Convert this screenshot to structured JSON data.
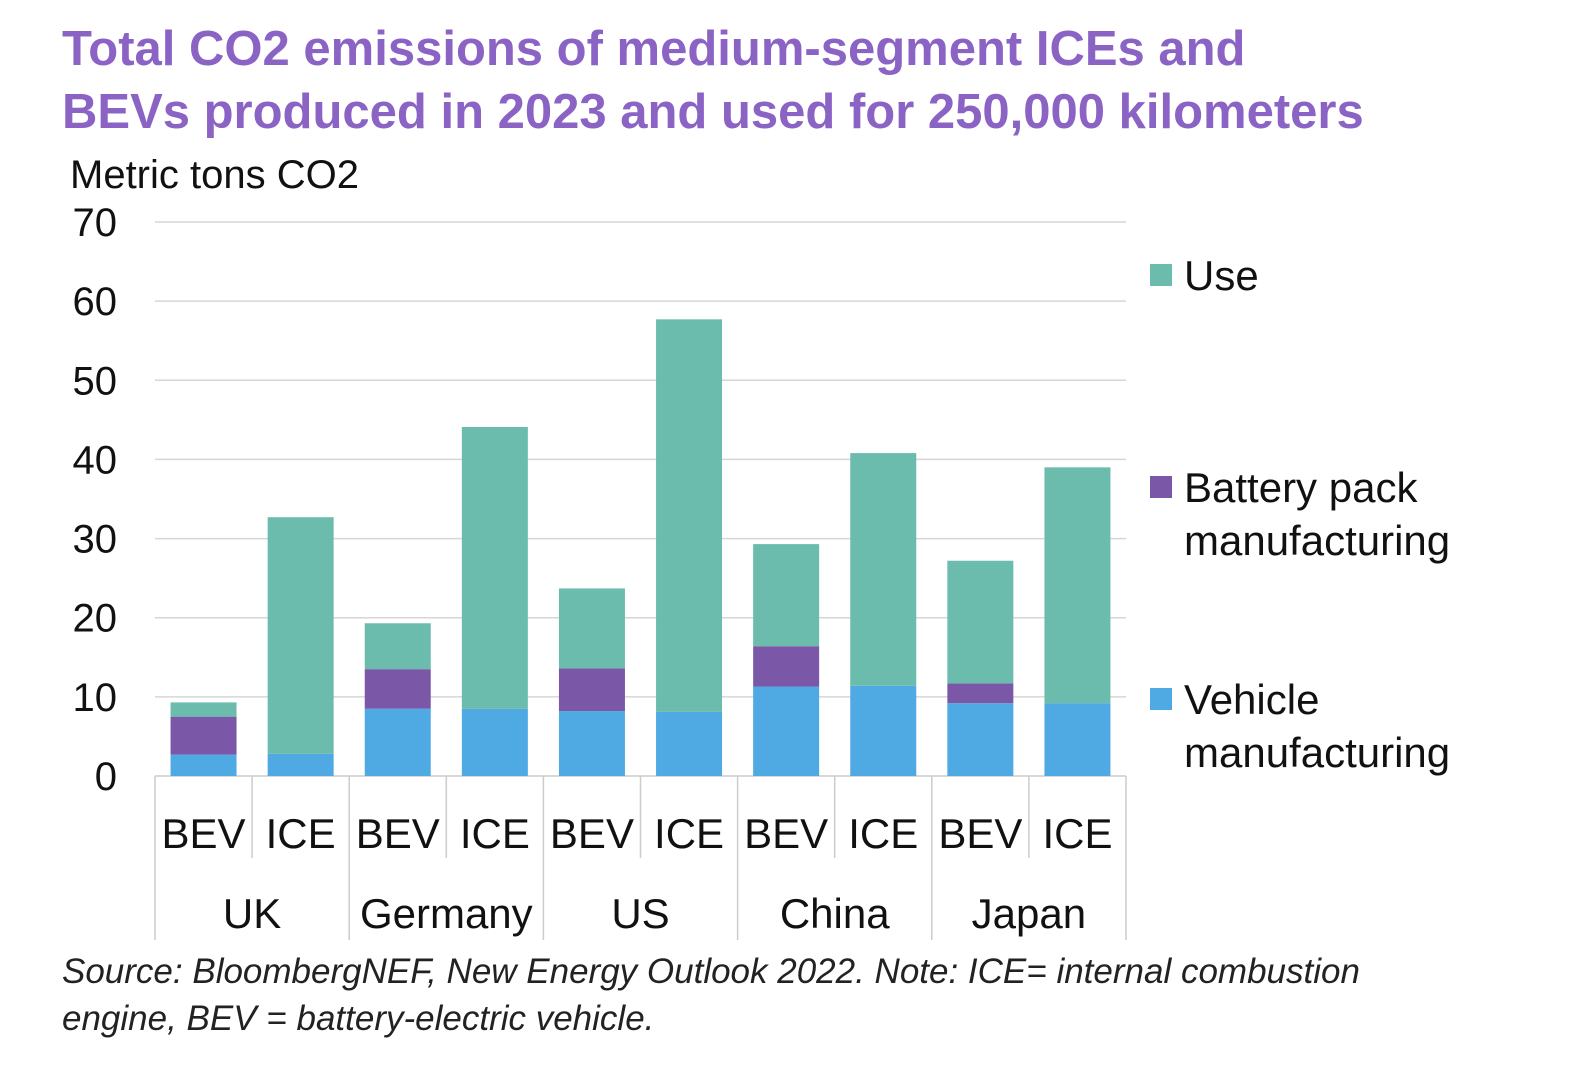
{
  "title_lines": [
    "Total CO2 emissions of medium-segment ICEs and",
    "BEVs produced in 2023 and used for 250,000 kilometers"
  ],
  "source_lines": [
    "Source: BloombergNEF, New Energy Outlook 2022. Note: ICE= internal combustion",
    "engine, BEV = battery-electric vehicle."
  ],
  "colors": {
    "title": "#8a63c4",
    "use": "#6bbcad",
    "battery": "#7b57a8",
    "vehicle": "#4fa9e2"
  },
  "chart_data": {
    "type": "bar",
    "stacked": true,
    "ylabel": "Metric tons CO2",
    "ylim": [
      0,
      70
    ],
    "yticks": [
      0,
      10,
      20,
      30,
      40,
      50,
      60,
      70
    ],
    "grid": true,
    "legend_position": "right",
    "groups": [
      "UK",
      "Germany",
      "US",
      "China",
      "Japan"
    ],
    "categories": [
      "BEV",
      "ICE",
      "BEV",
      "ICE",
      "BEV",
      "ICE",
      "BEV",
      "ICE",
      "BEV",
      "ICE"
    ],
    "series": [
      {
        "name": "Vehicle manufacturing",
        "legend_lines": [
          "Vehicle",
          "manufacturing"
        ],
        "color": "#4fa9e2",
        "values": [
          2.7,
          2.8,
          8.5,
          8.5,
          8.2,
          8.1,
          11.3,
          11.4,
          9.2,
          9.2
        ]
      },
      {
        "name": "Battery pack manufacturing",
        "legend_lines": [
          "Battery pack",
          "manufacturing"
        ],
        "color": "#7b57a8",
        "values": [
          4.8,
          0,
          5.0,
          0,
          5.4,
          0,
          5.1,
          0,
          2.5,
          0
        ]
      },
      {
        "name": "Use",
        "legend_lines": [
          "Use"
        ],
        "color": "#6bbcad",
        "values": [
          1.8,
          29.9,
          5.8,
          35.6,
          10.1,
          49.6,
          12.9,
          29.4,
          15.5,
          29.8
        ]
      }
    ]
  }
}
